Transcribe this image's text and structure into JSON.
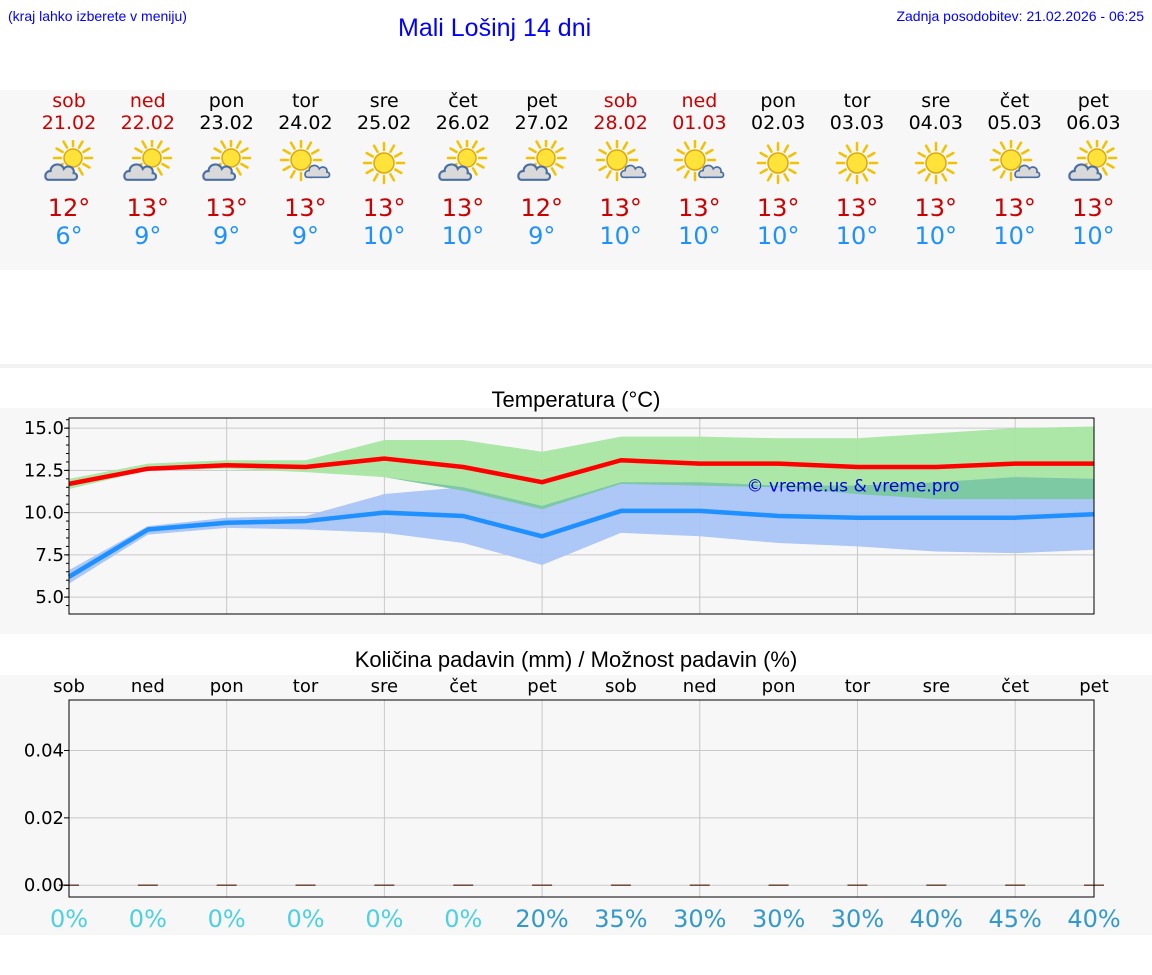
{
  "header": {
    "menu_hint": "(kraj lahko izberete v meniju)",
    "title": "Mali Lošinj 14 dni",
    "updated": "Zadnja posodobitev: 21.02.2026 - 06:25"
  },
  "forecast": [
    {
      "day": "sob",
      "date": "21.02",
      "weekend": true,
      "icon": "sun-cloud-icon",
      "max": "12°",
      "min": "6°"
    },
    {
      "day": "ned",
      "date": "22.02",
      "weekend": true,
      "icon": "sun-cloud-icon",
      "max": "13°",
      "min": "9°"
    },
    {
      "day": "pon",
      "date": "23.02",
      "weekend": false,
      "icon": "sun-cloud-icon",
      "max": "13°",
      "min": "9°"
    },
    {
      "day": "tor",
      "date": "24.02",
      "weekend": false,
      "icon": "sun-small-cloud-icon",
      "max": "13°",
      "min": "9°"
    },
    {
      "day": "sre",
      "date": "25.02",
      "weekend": false,
      "icon": "sun-icon",
      "max": "13°",
      "min": "10°"
    },
    {
      "day": "čet",
      "date": "26.02",
      "weekend": false,
      "icon": "sun-cloud-icon",
      "max": "13°",
      "min": "10°"
    },
    {
      "day": "pet",
      "date": "27.02",
      "weekend": false,
      "icon": "sun-cloud-icon",
      "max": "12°",
      "min": "9°"
    },
    {
      "day": "sob",
      "date": "28.02",
      "weekend": true,
      "icon": "sun-small-cloud-icon",
      "max": "13°",
      "min": "10°"
    },
    {
      "day": "ned",
      "date": "01.03",
      "weekend": true,
      "icon": "sun-small-cloud-icon",
      "max": "13°",
      "min": "10°"
    },
    {
      "day": "pon",
      "date": "02.03",
      "weekend": false,
      "icon": "sun-icon",
      "max": "13°",
      "min": "10°"
    },
    {
      "day": "tor",
      "date": "03.03",
      "weekend": false,
      "icon": "sun-icon",
      "max": "13°",
      "min": "10°"
    },
    {
      "day": "sre",
      "date": "04.03",
      "weekend": false,
      "icon": "sun-icon",
      "max": "13°",
      "min": "10°"
    },
    {
      "day": "čet",
      "date": "05.03",
      "weekend": false,
      "icon": "sun-small-cloud-icon",
      "max": "13°",
      "min": "10°"
    },
    {
      "day": "pet",
      "date": "06.03",
      "weekend": false,
      "icon": "sun-cloud-icon",
      "max": "13°",
      "min": "10°"
    }
  ],
  "colors": {
    "max_line": "#ff0000",
    "min_line": "#1e90ff",
    "max_band": "#a8e6a3",
    "min_band": "#a9c4f5",
    "overlap_band": "#7dc9a3",
    "weekend_text": "#cc0000",
    "max_text": "#cc0000",
    "min_text": "#1e90ff",
    "precip_low": "#4dd0e1",
    "precip_high": "#3399cc"
  },
  "chart_data": [
    {
      "type": "line",
      "title": "Temperatura (°C)",
      "watermark": "© vreme.us & vreme.pro",
      "x": [
        0,
        1,
        2,
        3,
        4,
        5,
        6,
        7,
        8,
        9,
        10,
        11,
        12,
        13
      ],
      "ylim": [
        4.0,
        15.6
      ],
      "yticks": [
        5.0,
        7.5,
        10.0,
        12.5,
        15.0
      ],
      "ytick_labels": [
        "5.0",
        "7.5",
        "10.0",
        "12.5",
        "15.0"
      ],
      "grid": true,
      "series": [
        {
          "name": "max",
          "values": [
            11.7,
            12.6,
            12.8,
            12.7,
            13.2,
            12.7,
            11.8,
            13.1,
            12.9,
            12.9,
            12.7,
            12.7,
            12.9,
            12.9
          ],
          "band_high": [
            12.0,
            12.9,
            13.1,
            13.1,
            14.3,
            14.3,
            13.6,
            14.5,
            14.5,
            14.4,
            14.4,
            14.7,
            15.0,
            15.1
          ],
          "band_low": [
            11.4,
            12.5,
            12.6,
            12.4,
            12.1,
            11.3,
            10.2,
            11.7,
            11.6,
            11.5,
            11.1,
            10.8,
            10.8,
            10.8
          ]
        },
        {
          "name": "min",
          "values": [
            6.2,
            9.0,
            9.4,
            9.5,
            10.0,
            9.8,
            8.6,
            10.1,
            10.1,
            9.8,
            9.7,
            9.7,
            9.7,
            9.9
          ],
          "band_high": [
            6.6,
            9.2,
            9.7,
            9.8,
            11.1,
            11.5,
            10.4,
            11.8,
            11.8,
            11.6,
            11.6,
            11.8,
            12.1,
            12.0
          ],
          "band_low": [
            5.8,
            8.7,
            9.1,
            9.0,
            8.8,
            8.2,
            6.9,
            8.8,
            8.6,
            8.2,
            8.0,
            7.7,
            7.6,
            7.8
          ]
        }
      ]
    },
    {
      "type": "bar",
      "title": "Količina padavin (mm) / Možnost padavin (%)",
      "categories": [
        "sob",
        "ned",
        "pon",
        "tor",
        "sre",
        "čet",
        "pet",
        "sob",
        "ned",
        "pon",
        "tor",
        "sre",
        "čet",
        "pet"
      ],
      "values": [
        0,
        0,
        0,
        0,
        0,
        0,
        0,
        0,
        0,
        0,
        0,
        0,
        0,
        0
      ],
      "ylim": [
        -0.0035,
        0.055
      ],
      "yticks": [
        0.0,
        0.02,
        0.04
      ],
      "ytick_labels": [
        "0.00",
        "0.02",
        "0.04"
      ],
      "probability": [
        "0%",
        "0%",
        "0%",
        "0%",
        "0%",
        "0%",
        "20%",
        "35%",
        "30%",
        "30%",
        "30%",
        "40%",
        "45%",
        "40%"
      ],
      "grid": true
    }
  ]
}
